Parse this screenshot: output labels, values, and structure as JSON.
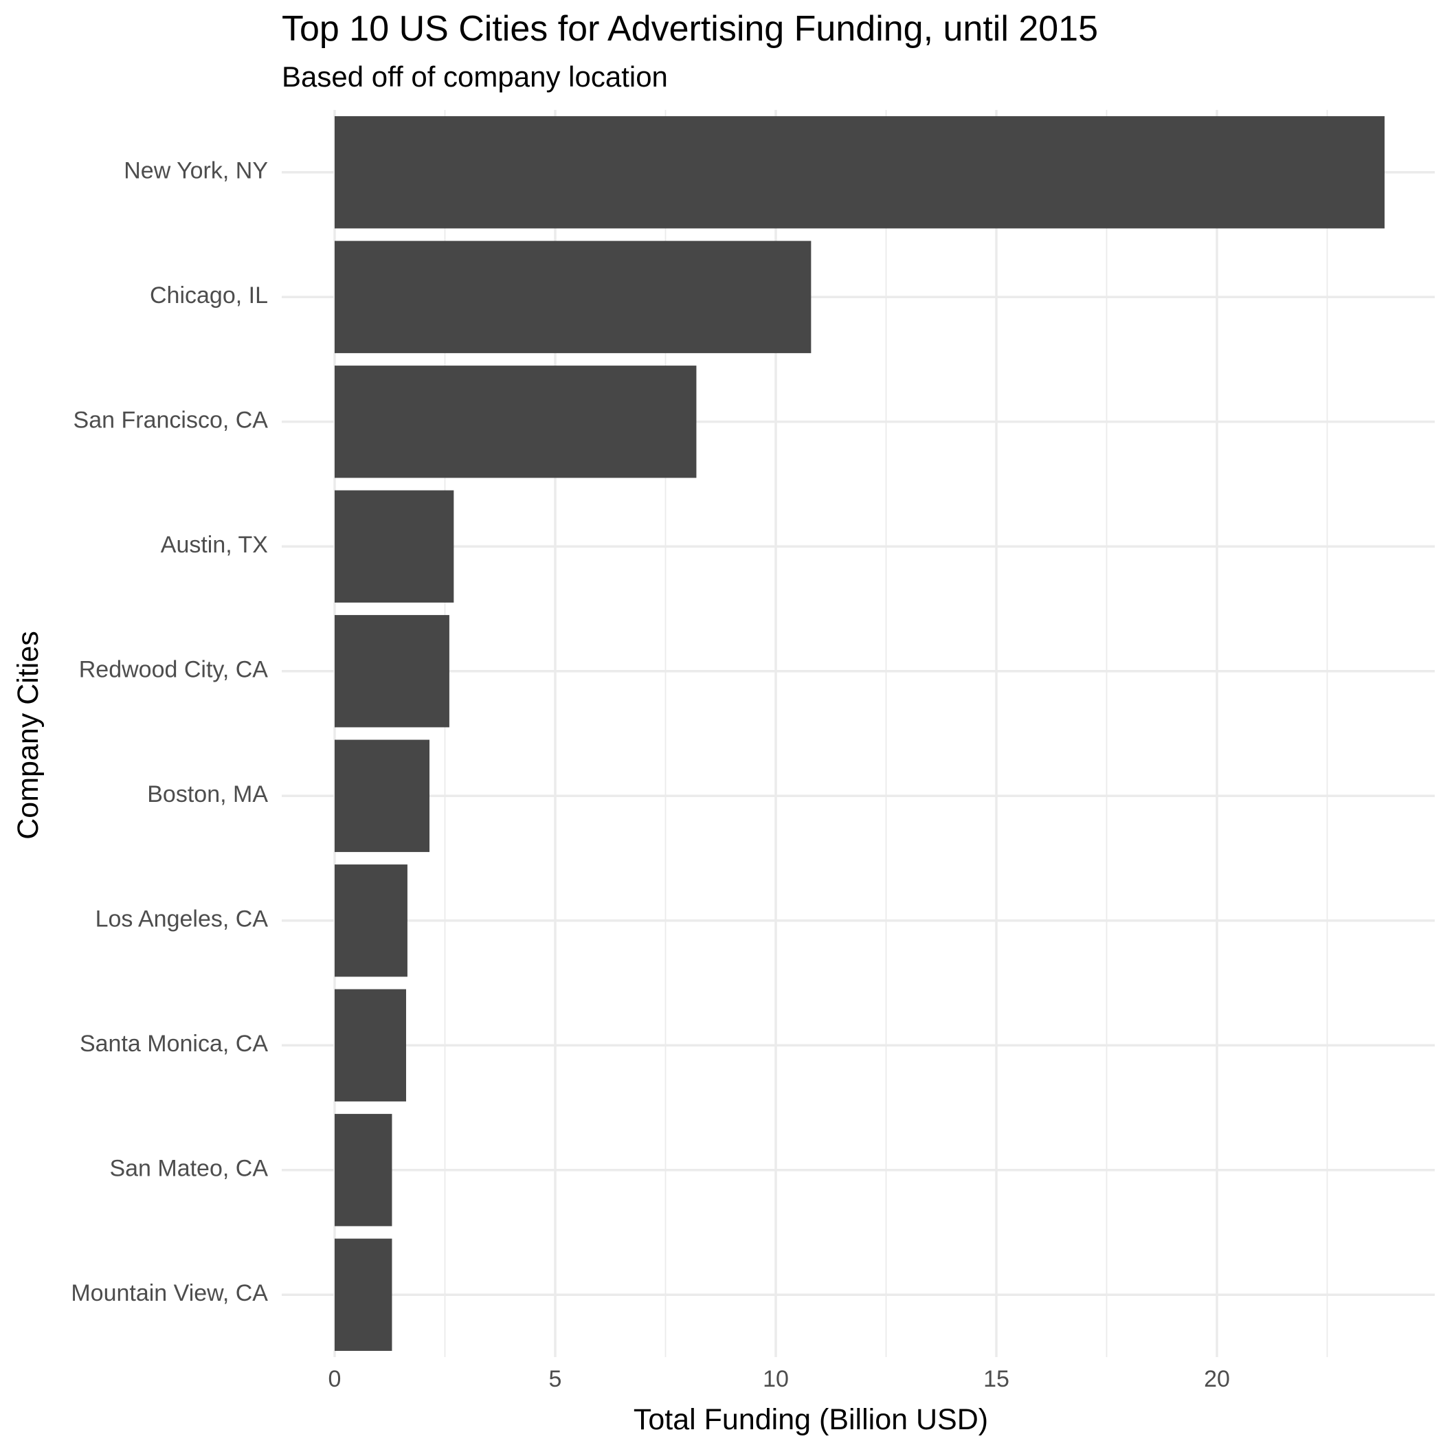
{
  "chart_data": {
    "type": "bar",
    "orientation": "horizontal",
    "title": "Top 10 US Cities for Advertising Funding, until 2015",
    "subtitle": "Based off of company location",
    "xlabel": "Total Funding (Billion USD)",
    "ylabel": "Company Cities",
    "categories": [
      "New York, NY",
      "Chicago, IL",
      "San Francisco, CA",
      "Austin, TX",
      "Redwood City, CA",
      "Boston, MA",
      "Los Angeles, CA",
      "Santa Monica, CA",
      "San Mateo, CA",
      "Mountain View, CA"
    ],
    "values": [
      23.8,
      10.8,
      8.2,
      2.7,
      2.6,
      2.15,
      1.65,
      1.62,
      1.3,
      1.3
    ],
    "xlim": [
      0,
      25
    ],
    "xticks": [
      "0",
      "5",
      "10",
      "15",
      "20"
    ],
    "grid": true,
    "bar_color": "#474747",
    "grid_color": "#ebebeb"
  }
}
